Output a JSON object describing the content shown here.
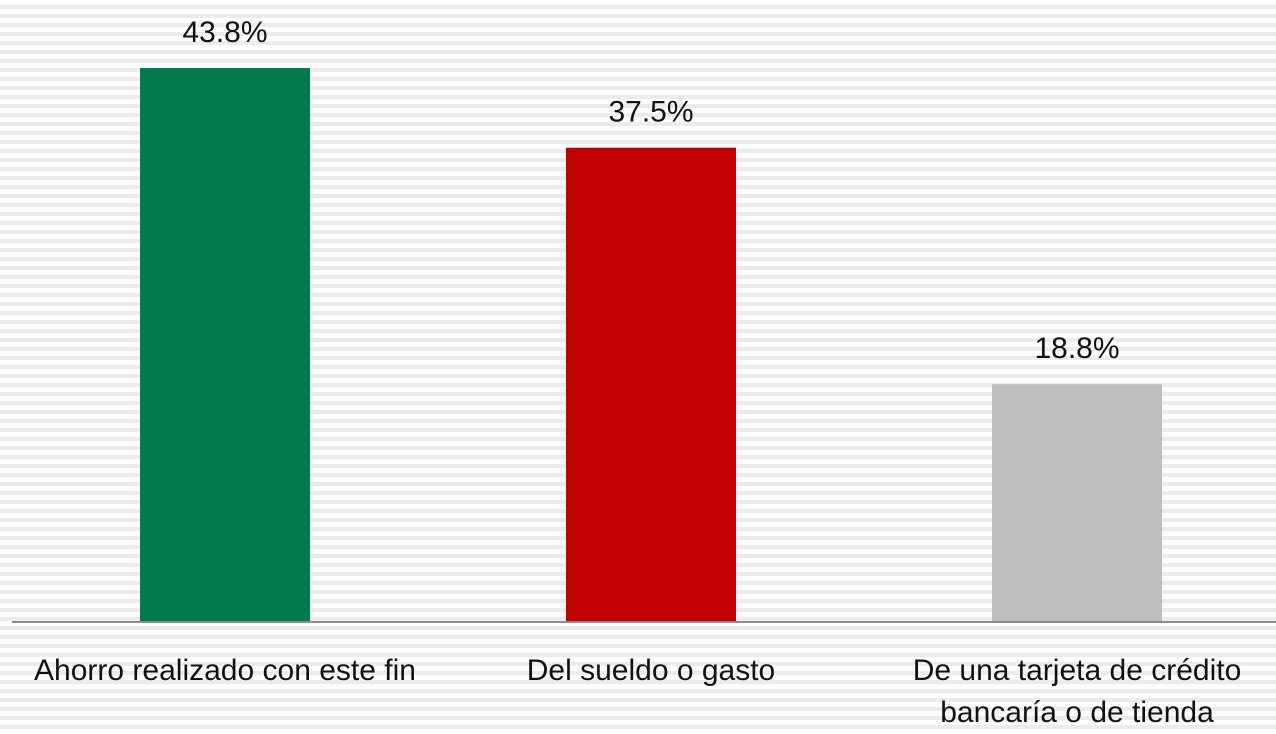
{
  "chart_data": {
    "type": "bar",
    "categories": [
      "Ahorro realizado con este fin",
      "Del sueldo o gasto",
      "De una tarjeta de crédito bancaría o de tienda"
    ],
    "values": [
      43.8,
      37.5,
      18.8
    ],
    "value_labels": [
      "43.8%",
      "37.5%",
      "18.8%"
    ],
    "colors": [
      "#037a4e",
      "#c00000",
      "#bfbfbf"
    ]
  }
}
